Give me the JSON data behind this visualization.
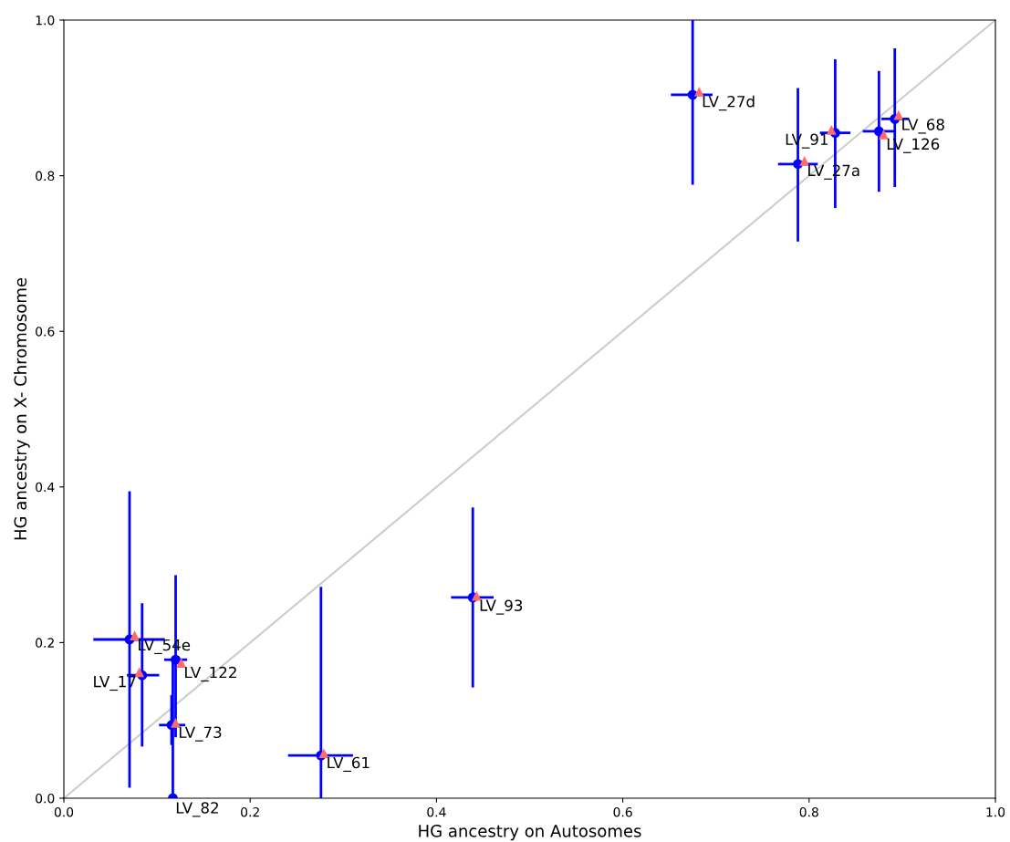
{
  "chart_data": {
    "type": "scatter",
    "xlabel": "HG ancestry on Autosomes",
    "ylabel": "HG ancestry on X- Chromosome",
    "xlim": [
      0,
      1
    ],
    "ylim": [
      0,
      1
    ],
    "xticks": [
      {
        "value": 0,
        "label": "0.0"
      },
      {
        "value": 0.2,
        "label": "0.2"
      },
      {
        "value": 0.4,
        "label": "0.4"
      },
      {
        "value": 0.6,
        "label": "0.6"
      },
      {
        "value": 0.8,
        "label": "0.8"
      },
      {
        "value": 1,
        "label": "1.0"
      }
    ],
    "yticks": [
      {
        "value": 0,
        "label": "0.0"
      },
      {
        "value": 0.2,
        "label": "0.2"
      },
      {
        "value": 0.4,
        "label": "0.4"
      },
      {
        "value": 0.6,
        "label": "0.6"
      },
      {
        "value": 0.8,
        "label": "0.8"
      },
      {
        "value": 1,
        "label": "1.0"
      }
    ],
    "grid": false,
    "legend": false,
    "series": [
      {
        "type": "line",
        "color": "#cccccc",
        "x": [
          0,
          1
        ],
        "values": [
          0,
          1
        ],
        "marker": "none"
      },
      {
        "type": "scatter",
        "color": "#ff6b6b",
        "marker": "triangle",
        "x": [
          0.076,
          0.081,
          0.126,
          0.12,
          null,
          0.279,
          0.443,
          0.682,
          0.795,
          0.824,
          0.88,
          0.896
        ],
        "values": [
          0.209,
          0.162,
          0.174,
          0.097,
          null,
          0.058,
          0.26,
          0.908,
          0.819,
          0.859,
          0.853,
          0.878
        ]
      },
      {
        "color": "#0000ff",
        "marker": "circle",
        "x": [
          0.0705,
          0.084,
          0.12,
          0.1156,
          0.117,
          0.276,
          0.439,
          0.675,
          0.788,
          0.828,
          0.875,
          0.892
        ],
        "values": [
          0.204,
          0.158,
          0.178,
          0.094,
          0.0,
          0.055,
          0.258,
          0.904,
          0.815,
          0.855,
          0.857,
          0.873
        ],
        "xerrors": [
          [
            0.033,
            0.107
          ],
          [
            0.069,
            0.101
          ],
          [
            0.109,
            0.131
          ],
          [
            0.1035,
            0.129
          ],
          null,
          [
            0.242,
            0.309
          ],
          [
            0.417,
            0.46
          ],
          [
            0.653,
            0.695
          ],
          [
            0.768,
            0.808
          ],
          [
            0.813,
            0.843
          ],
          [
            0.859,
            0.89
          ],
          [
            0.879,
            0.906
          ]
        ],
        "errors": [
          [
            0.015,
            0.393
          ],
          [
            0.068,
            0.249
          ],
          [
            0.08,
            0.285
          ],
          [
            0.07,
            0.131
          ],
          [
            0.0,
            0.18
          ],
          [
            0.0,
            0.27
          ],
          [
            0.144,
            0.372
          ],
          [
            0.79,
            1.0
          ],
          [
            0.717,
            0.911
          ],
          [
            0.76,
            0.948
          ],
          [
            0.781,
            0.933
          ],
          [
            0.787,
            0.962
          ]
        ]
      }
    ],
    "annotations": [
      {
        "text": "LV_54e",
        "x": 0.076,
        "y": 0.209
      },
      {
        "text": "LV_17",
        "x": 0.081,
        "y": 0.162
      },
      {
        "text": "LV_122",
        "x": 0.126,
        "y": 0.174
      },
      {
        "text": "LV_73",
        "x": 0.12,
        "y": 0.097
      },
      {
        "text": "LV_82",
        "x": 0.117,
        "y": 0.0
      },
      {
        "text": "LV_61",
        "x": 0.279,
        "y": 0.058
      },
      {
        "text": "LV_93",
        "x": 0.443,
        "y": 0.26
      },
      {
        "text": "LV_27d",
        "x": 0.682,
        "y": 0.908
      },
      {
        "text": "LV_27a",
        "x": 0.795,
        "y": 0.819
      },
      {
        "text": "LV_91",
        "x": 0.824,
        "y": 0.859
      },
      {
        "text": "LV_126",
        "x": 0.88,
        "y": 0.853
      },
      {
        "text": "LV_68",
        "x": 0.896,
        "y": 0.878
      }
    ]
  }
}
